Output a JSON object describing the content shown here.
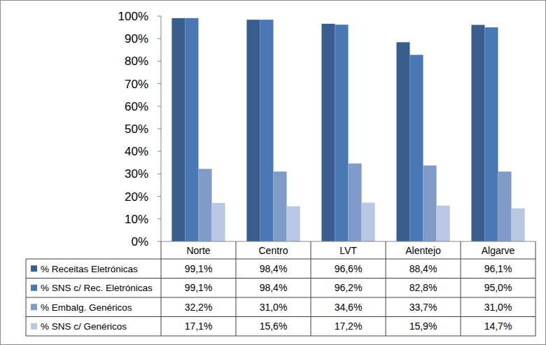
{
  "chart_data": {
    "type": "bar",
    "categories": [
      "Norte",
      "Centro",
      "LVT",
      "Alentejo",
      "Algarve"
    ],
    "series": [
      {
        "name": "% Receitas Eletrónicas",
        "color": "#3a5d8e",
        "values": [
          99.1,
          98.4,
          96.6,
          88.4,
          96.1
        ],
        "value_labels": [
          "99,1%",
          "98,4%",
          "96,6%",
          "88,4%",
          "96,1%"
        ]
      },
      {
        "name": "% SNS c/ Rec. Eletrónicas",
        "color": "#4a78b4",
        "values": [
          99.1,
          98.4,
          96.2,
          82.8,
          95.0
        ],
        "value_labels": [
          "99,1%",
          "98,4%",
          "96,2%",
          "82,8%",
          "95,0%"
        ]
      },
      {
        "name": "% Embalg. Genéricos",
        "color": "#809bc8",
        "values": [
          32.2,
          31.0,
          34.6,
          33.7,
          31.0
        ],
        "value_labels": [
          "32,2%",
          "31,0%",
          "34,6%",
          "33,7%",
          "31,0%"
        ]
      },
      {
        "name": "% SNS c/ Genéricos",
        "color": "#b8c7e2",
        "values": [
          17.1,
          15.6,
          17.2,
          15.9,
          14.7
        ],
        "value_labels": [
          "17,1%",
          "15,6%",
          "17,2%",
          "15,9%",
          "14,7%"
        ]
      }
    ],
    "ylim": [
      0,
      100
    ],
    "yticks": [
      {
        "value": 0,
        "label": "0%"
      },
      {
        "value": 10,
        "label": "10%"
      },
      {
        "value": 20,
        "label": "20%"
      },
      {
        "value": 30,
        "label": "30%"
      },
      {
        "value": 40,
        "label": "40%"
      },
      {
        "value": 50,
        "label": "50%"
      },
      {
        "value": 60,
        "label": "60%"
      },
      {
        "value": 70,
        "label": "70%"
      },
      {
        "value": 80,
        "label": "80%"
      },
      {
        "value": 90,
        "label": "90%"
      },
      {
        "value": 100,
        "label": "100%"
      }
    ],
    "grid": false
  }
}
